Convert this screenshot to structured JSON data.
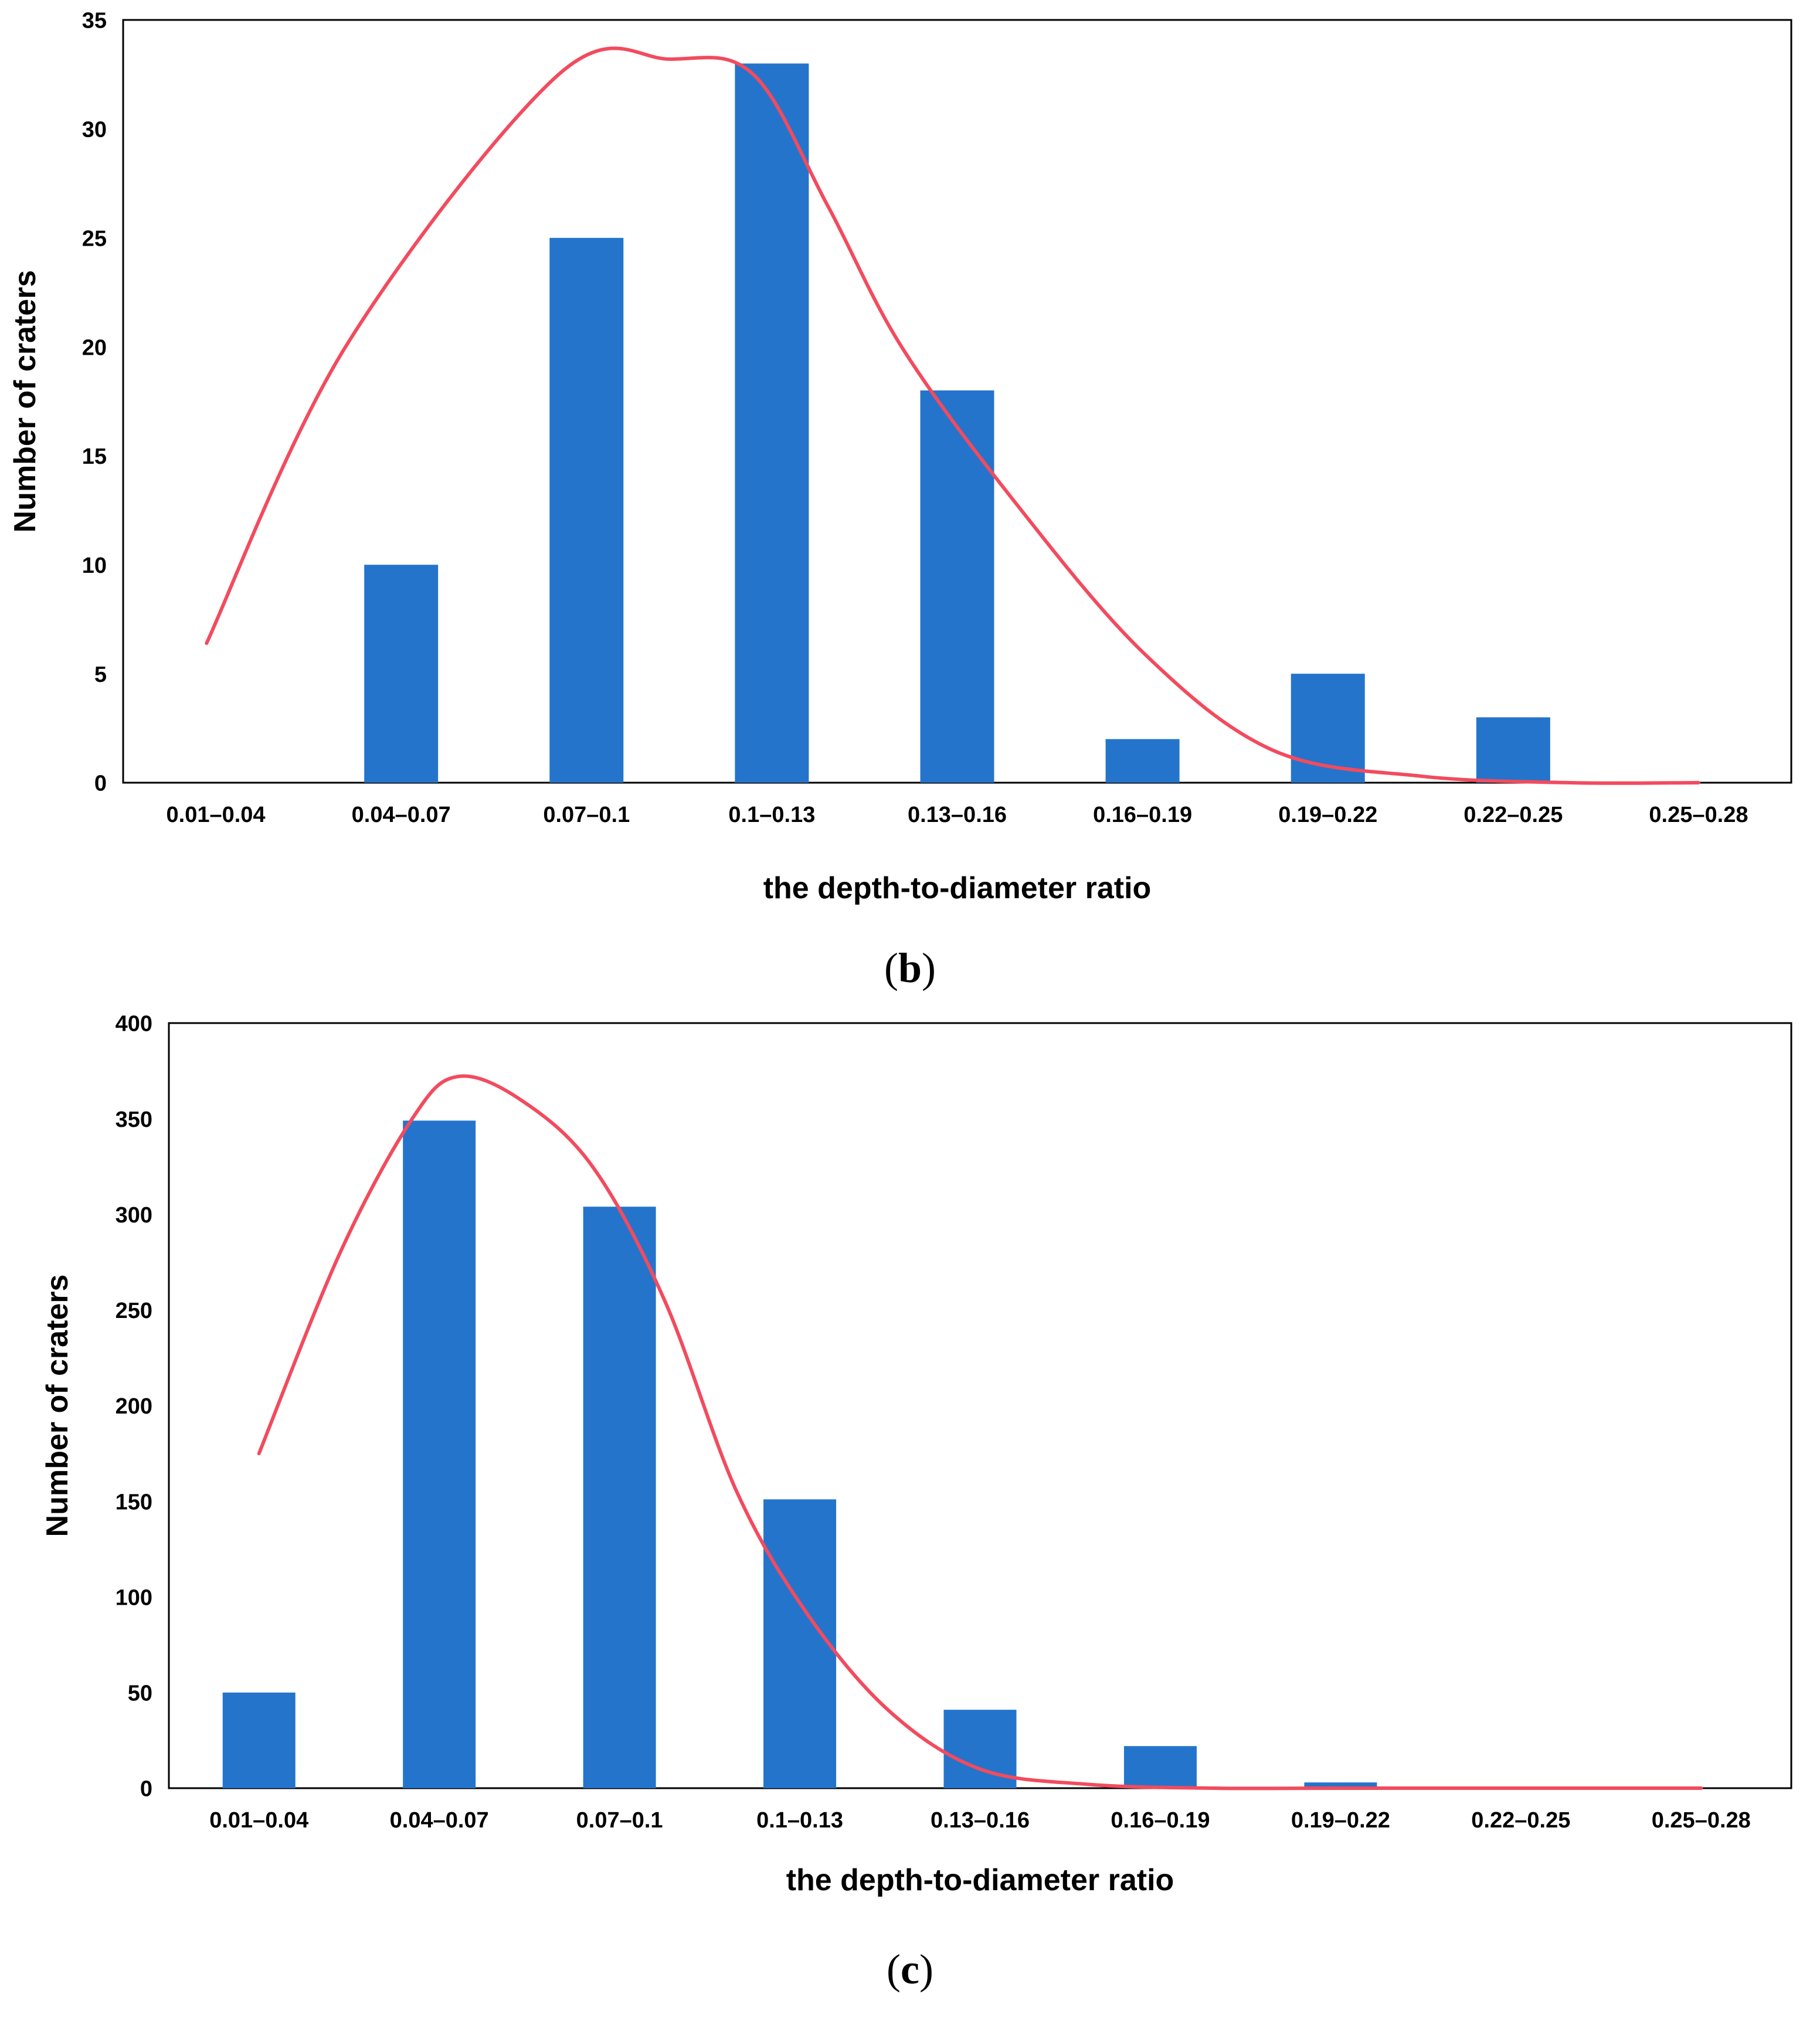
{
  "colors": {
    "bar": "#2474CC",
    "curve": "#F24B5E",
    "axis": "#000000"
  },
  "panels": [
    {
      "label_open": "(",
      "label_letter": "b",
      "label_close": ")"
    },
    {
      "label_open": "(",
      "label_letter": "c",
      "label_close": ")"
    }
  ],
  "chart_data": [
    {
      "type": "bar",
      "title": "",
      "xlabel": "the depth-to-diameter ratio",
      "ylabel": "Number of craters",
      "categories": [
        "0.01–0.04",
        "0.04–0.07",
        "0.07–0.1",
        "0.1–0.13",
        "0.13–0.16",
        "0.16–0.19",
        "0.19–0.22",
        "0.22–0.25",
        "0.25–0.28"
      ],
      "values": [
        0,
        10,
        25,
        33,
        18,
        2,
        5,
        3,
        0
      ],
      "ylim": [
        0,
        35
      ],
      "yticks": [
        0,
        5,
        10,
        15,
        20,
        25,
        30,
        35
      ],
      "ytick_labels": [
        "0",
        "5",
        "10",
        "15",
        "20",
        "25",
        "30",
        "35"
      ],
      "fit_curve": {
        "x": [
          -0.05,
          0.7,
          1.85,
          2.45,
          2.9,
          3.3,
          3.7,
          4.3,
          5.0,
          5.7,
          6.5,
          7.3,
          8.0
        ],
        "y": [
          6.4,
          20,
          32.5,
          33.2,
          32.5,
          26.5,
          20,
          13,
          6,
          1.5,
          0.3,
          0,
          0
        ]
      }
    },
    {
      "type": "bar",
      "title": "",
      "xlabel": "the depth-to-diameter ratio",
      "ylabel": "Number of craters",
      "categories": [
        "0.01–0.04",
        "0.04–0.07",
        "0.07–0.1",
        "0.1–0.13",
        "0.13–0.16",
        "0.16–0.19",
        "0.19–0.22",
        "0.22–0.25",
        "0.25–0.28"
      ],
      "values": [
        50,
        349,
        304,
        151,
        41,
        22,
        3,
        0,
        0
      ],
      "ylim": [
        0,
        400
      ],
      "yticks": [
        0,
        50,
        100,
        150,
        200,
        250,
        300,
        350,
        400
      ],
      "ytick_labels": [
        "0",
        "50",
        "100",
        "150",
        "200",
        "250",
        "300",
        "350",
        "400"
      ],
      "fit_curve": {
        "x": [
          0,
          0.45,
          0.85,
          1.1,
          1.45,
          1.85,
          2.25,
          2.65,
          3.05,
          3.5,
          4.0,
          4.6,
          5.3,
          6.0,
          8.0
        ],
        "y": [
          175,
          280,
          350,
          372,
          360,
          325,
          255,
          155,
          90,
          40,
          10,
          2,
          0,
          0,
          0
        ]
      }
    }
  ]
}
